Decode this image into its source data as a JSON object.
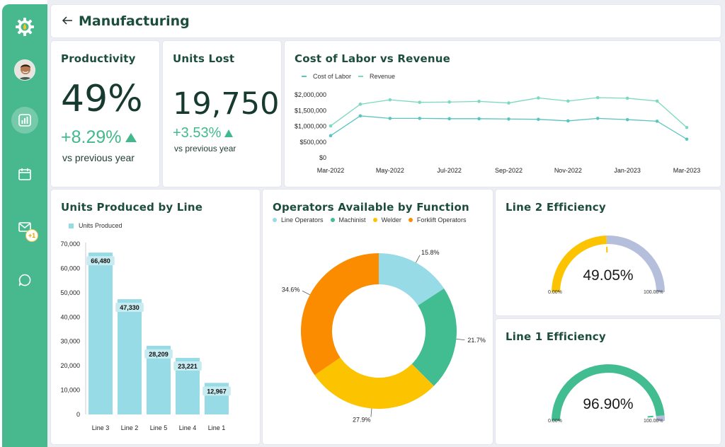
{
  "header": {
    "title": "Manufacturing"
  },
  "sidebar": {
    "items": [
      {
        "icon": "dashboard-icon"
      },
      {
        "icon": "calendar-icon"
      },
      {
        "icon": "mail-icon",
        "badge": "+1"
      },
      {
        "icon": "chat-icon"
      }
    ]
  },
  "productivity": {
    "title": "Productivity",
    "value": "49%",
    "change": "+8.29%",
    "sub": "vs previous year"
  },
  "units_lost": {
    "title": "Units Lost",
    "value": "19,750",
    "change": "+3.53%",
    "sub": "vs previous year"
  },
  "colors": {
    "accent": "#48b98e",
    "cyan": "#97dbe6",
    "green": "#41bd91",
    "yellow": "#fcc300",
    "orange": "#fb8c00",
    "gauge_rest": "#b5bedb",
    "title": "#1d4d3c"
  },
  "labor_chart": {
    "title": "Cost of Labor vs Revenue",
    "legend": [
      "Cost of Labor",
      "Revenue"
    ]
  },
  "units_chart": {
    "title": "Units Produced by Line",
    "legend": "Units Produced"
  },
  "operators_chart": {
    "title": "Operators Available by Function",
    "legend": [
      "Line Operators",
      "Machinist",
      "Welder",
      "Forklift Operators"
    ]
  },
  "line2": {
    "title": "Line 2 Efficiency",
    "value": "49.05%",
    "fraction": 0.4905,
    "min_label": "0.00%",
    "max_label": "100.00%"
  },
  "line1": {
    "title": "Line 1 Efficiency",
    "value": "96.90%",
    "fraction": 0.969,
    "min_label": "0.00%",
    "max_label": "100.00%"
  },
  "chart_data": [
    {
      "type": "line",
      "title": "Cost of Labor vs Revenue",
      "x": [
        "Mar-2022",
        "Apr-2022",
        "May-2022",
        "Jun-2022",
        "Jul-2022",
        "Aug-2022",
        "Sep-2022",
        "Oct-2022",
        "Nov-2022",
        "Dec-2022",
        "Jan-2023",
        "Feb-2023",
        "Mar-2023"
      ],
      "x_tick_labels": [
        "Mar-2022",
        "May-2022",
        "Jul-2022",
        "Sep-2022",
        "Nov-2022",
        "Jan-2023",
        "Mar-2023"
      ],
      "y_tick_labels": [
        "$2,000,000",
        "$1,500,000",
        "$1,000,000",
        "$500,000",
        "$0"
      ],
      "ylim": [
        0,
        2000000
      ],
      "series": [
        {
          "name": "Cost of Labor",
          "color": "#5ac4c0",
          "values": [
            700000,
            1330000,
            1250000,
            1250000,
            1240000,
            1240000,
            1230000,
            1220000,
            1170000,
            1250000,
            1210000,
            1160000,
            590000
          ]
        },
        {
          "name": "Revenue",
          "color": "#7ad9c0",
          "values": [
            1010000,
            1700000,
            1840000,
            1760000,
            1770000,
            1790000,
            1740000,
            1900000,
            1800000,
            1910000,
            1890000,
            1800000,
            960000
          ]
        }
      ],
      "legend_position": "top-left"
    },
    {
      "type": "bar",
      "title": "Units Produced by Line",
      "categories": [
        "Line 3",
        "Line 2",
        "Line 5",
        "Line 4",
        "Line 1"
      ],
      "values": [
        66480,
        47330,
        28209,
        23221,
        12967
      ],
      "value_labels": [
        "66,480",
        "47,330",
        "28,209",
        "23,221",
        "12,967"
      ],
      "y_tick_labels": [
        "70,000",
        "60,000",
        "50,000",
        "40,000",
        "30,000",
        "20,000",
        "10,000",
        "0"
      ],
      "ylim": [
        0,
        70000
      ],
      "series_name": "Units Produced",
      "color": "#97dbe6",
      "legend_position": "top-left"
    },
    {
      "type": "pie",
      "title": "Operators Available by Function",
      "labels": [
        "Line Operators",
        "Machinist",
        "Welder",
        "Forklift Operators"
      ],
      "values": [
        15.8,
        21.7,
        27.9,
        34.6
      ],
      "value_labels": [
        "15.8%",
        "21.7%",
        "27.9%",
        "34.6%"
      ],
      "colors": [
        "#97dbe6",
        "#41bd91",
        "#fcc300",
        "#fb8c00"
      ],
      "donut": true,
      "legend_position": "top"
    }
  ]
}
